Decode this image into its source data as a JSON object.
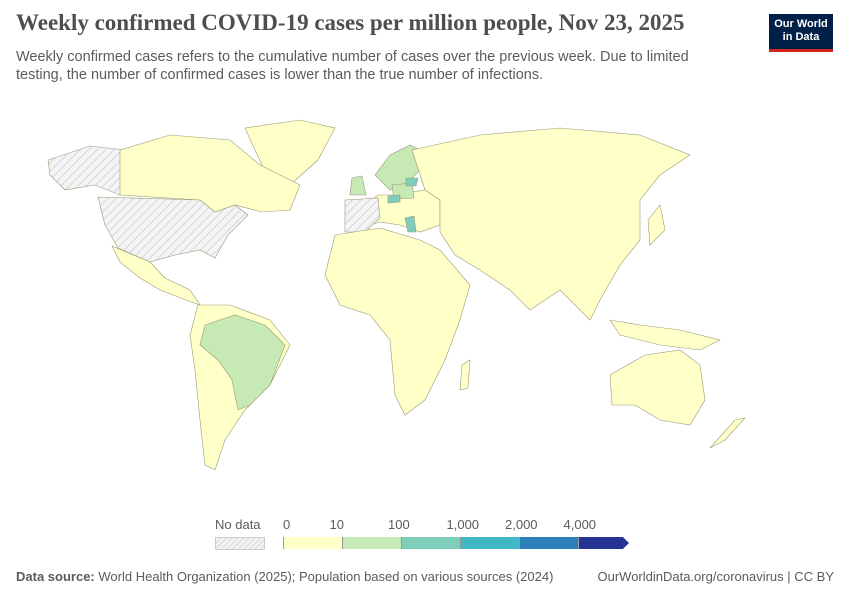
{
  "title": "Weekly confirmed COVID-19 cases per million people, Nov 23, 2025",
  "subtitle": "Weekly confirmed cases refers to the cumulative number of cases over the previous week. Due to limited testing, the number of confirmed cases is lower than the true number of infections.",
  "logo": {
    "line1": "Our World",
    "line2": "in Data",
    "bg": "#002147",
    "accent": "#ce261e"
  },
  "legend": {
    "no_data": "No data",
    "ticks": [
      "0",
      "10",
      "100",
      "1,000",
      "2,000",
      "4,000"
    ],
    "colors": [
      "#ffffc8",
      "#c7e9b4",
      "#7fcdbb",
      "#41b6c4",
      "#2c7fb8",
      "#253494"
    ],
    "no_data_pattern": "hatched-gray"
  },
  "footer": {
    "source_label": "Data source:",
    "source": "World Health Organization (2025); Population based on various sources (2024)",
    "link": "OurWorldinData.org/coronavirus",
    "license": "CC BY"
  },
  "map": {
    "regions": [
      {
        "name": "Canada",
        "bin": "0-10"
      },
      {
        "name": "United States",
        "bin": "No data"
      },
      {
        "name": "Brazil",
        "bin": "10-100"
      },
      {
        "name": "Nordics",
        "bin": "10-100"
      },
      {
        "name": "Poland",
        "bin": "10-100"
      },
      {
        "name": "Czechia",
        "bin": "100-1,000"
      },
      {
        "name": "Lithuania",
        "bin": "100-1,000"
      },
      {
        "name": "Greece",
        "bin": "100-1,000"
      },
      {
        "name": "United Kingdom",
        "bin": "10-100"
      },
      {
        "name": "France",
        "bin": "No data"
      },
      {
        "name": "Spain",
        "bin": "No data"
      },
      {
        "name": "Africa",
        "bin": "0-10"
      },
      {
        "name": "Asia",
        "bin": "0-10"
      },
      {
        "name": "Australia",
        "bin": "0-10"
      }
    ]
  }
}
